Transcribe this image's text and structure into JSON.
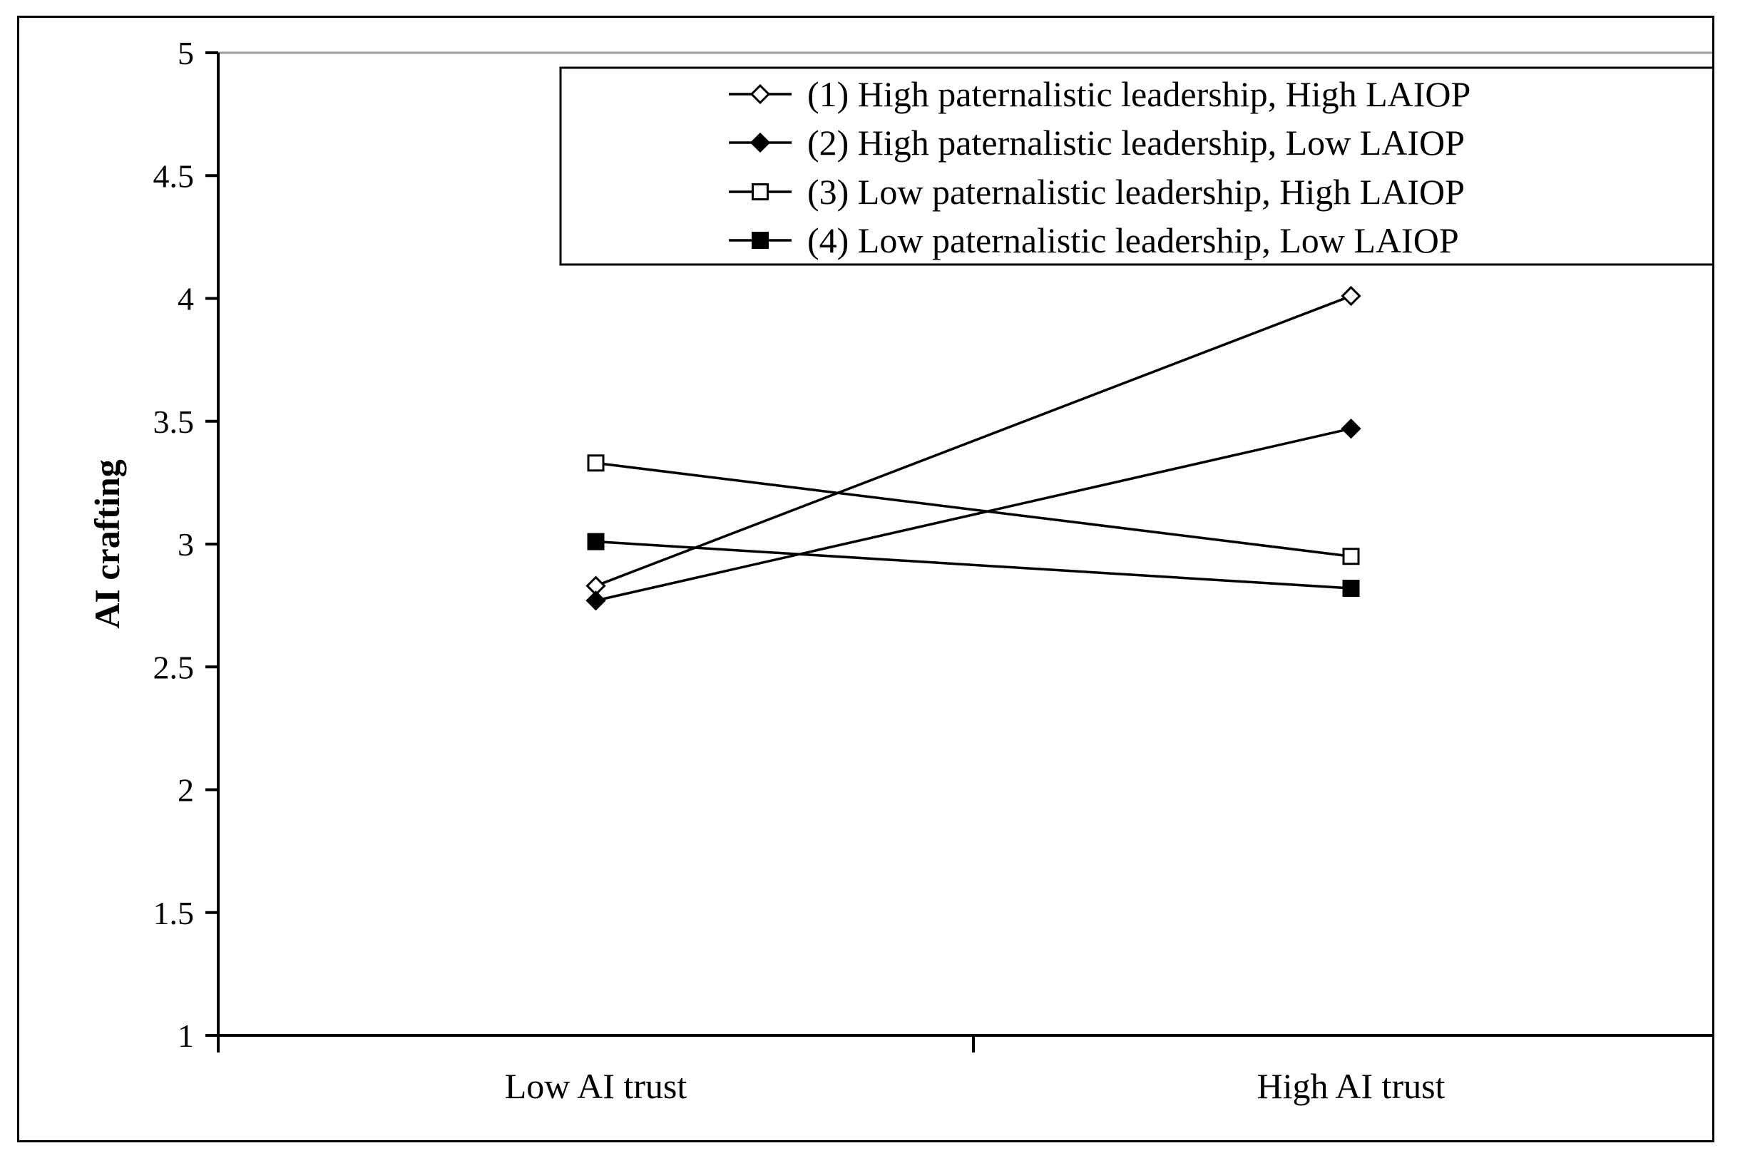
{
  "chart_data": {
    "type": "line",
    "title": "",
    "xlabel": "",
    "ylabel": "AI crafting",
    "categories": [
      "Low AI trust",
      "High AI trust"
    ],
    "ylim": [
      1,
      5
    ],
    "yticks": [
      "1",
      "1.5",
      "2",
      "2.5",
      "3",
      "3.5",
      "4",
      "4.5",
      "5"
    ],
    "ytick_values": [
      1,
      1.5,
      2,
      2.5,
      3,
      3.5,
      4,
      4.5,
      5
    ],
    "grid": false,
    "legend_position": "top-right",
    "series": [
      {
        "name": "(1) High paternalistic leadership, High LAIOP",
        "marker": "diamond-open",
        "values": [
          2.83,
          4.01
        ]
      },
      {
        "name": "(2) High paternalistic leadership, Low LAIOP",
        "marker": "diamond-filled",
        "values": [
          2.77,
          3.47
        ]
      },
      {
        "name": "(3) Low paternalistic leadership, High LAIOP",
        "marker": "square-open",
        "values": [
          3.33,
          2.95
        ]
      },
      {
        "name": "(4) Low paternalistic leadership, Low LAIOP",
        "marker": "square-filled",
        "values": [
          3.01,
          2.82
        ]
      }
    ],
    "colors": {
      "line": "#000000",
      "background": "#ffffff"
    }
  }
}
